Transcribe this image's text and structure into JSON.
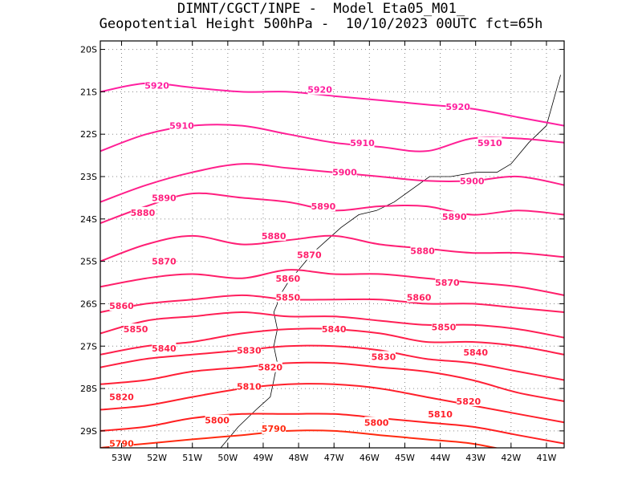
{
  "title": {
    "line1": "DIMNT/CGCT/INPE -  Model Eta05_M01_",
    "line2": "Geopotential Height 500hPa -  10/10/2023 00UTC fct=65h"
  },
  "chart_data": {
    "type": "contour",
    "variable": "Geopotential Height 500hPa",
    "units": "gpm",
    "xlim": [
      -53.6,
      -40.5
    ],
    "ylim": [
      -29.4,
      -19.8
    ],
    "x_ticks": [
      {
        "value": -53,
        "label": "53W"
      },
      {
        "value": -52,
        "label": "52W"
      },
      {
        "value": -51,
        "label": "51W"
      },
      {
        "value": -50,
        "label": "50W"
      },
      {
        "value": -49,
        "label": "49W"
      },
      {
        "value": -48,
        "label": "48W"
      },
      {
        "value": -47,
        "label": "47W"
      },
      {
        "value": -46,
        "label": "46W"
      },
      {
        "value": -45,
        "label": "45W"
      },
      {
        "value": -44,
        "label": "44W"
      },
      {
        "value": -43,
        "label": "43W"
      },
      {
        "value": -42,
        "label": "42W"
      },
      {
        "value": -41,
        "label": "41W"
      }
    ],
    "y_ticks": [
      {
        "value": -20,
        "label": "20S"
      },
      {
        "value": -21,
        "label": "21S"
      },
      {
        "value": -22,
        "label": "22S"
      },
      {
        "value": -23,
        "label": "23S"
      },
      {
        "value": -24,
        "label": "24S"
      },
      {
        "value": -25,
        "label": "25S"
      },
      {
        "value": -26,
        "label": "26S"
      },
      {
        "value": -27,
        "label": "27S"
      },
      {
        "value": -28,
        "label": "28S"
      },
      {
        "value": -29,
        "label": "29S"
      }
    ],
    "grid": "dotted",
    "contours": [
      {
        "level": 5920,
        "color": "#ff1fa0",
        "lats": [
          -21.0,
          -20.8,
          -20.9,
          -21.0,
          -21.0,
          -21.1,
          -21.2,
          -21.3,
          -21.4,
          -21.6,
          -21.8
        ]
      },
      {
        "level": 5910,
        "color": "#ff1f95",
        "lats": [
          -22.4,
          -22.0,
          -21.8,
          -21.8,
          -22.0,
          -22.2,
          -22.3,
          -22.4,
          -22.1,
          -22.1,
          -22.2
        ]
      },
      {
        "level": 5900,
        "color": "#ff1f8a",
        "lats": [
          -23.6,
          -23.2,
          -22.9,
          -22.7,
          -22.8,
          -22.9,
          -23.0,
          -23.1,
          -23.1,
          -23.0,
          -23.2
        ]
      },
      {
        "level": 5890,
        "color": "#ff1f7f",
        "lats": [
          -24.1,
          -23.7,
          -23.4,
          -23.5,
          -23.6,
          -23.8,
          -23.7,
          -23.7,
          -23.9,
          -23.8,
          -23.9
        ]
      },
      {
        "level": 5880,
        "color": "#ff1f75",
        "lats": [
          -25.0,
          -24.6,
          -24.4,
          -24.6,
          -24.5,
          -24.4,
          -24.6,
          -24.7,
          -24.8,
          -24.8,
          -24.9
        ]
      },
      {
        "level": 5870,
        "color": "#ff1f6a",
        "lats": [
          -25.6,
          -25.4,
          -25.3,
          -25.4,
          -25.2,
          -25.3,
          -25.3,
          -25.4,
          -25.5,
          -25.6,
          -25.8
        ]
      },
      {
        "level": 5860,
        "color": "#ff1f5f",
        "lats": [
          -26.2,
          -26.0,
          -25.9,
          -25.8,
          -25.9,
          -25.9,
          -25.9,
          -26.0,
          -26.0,
          -26.1,
          -26.2
        ]
      },
      {
        "level": 5850,
        "color": "#ff1f55",
        "lats": [
          -26.7,
          -26.4,
          -26.3,
          -26.2,
          -26.3,
          -26.3,
          -26.4,
          -26.5,
          -26.5,
          -26.6,
          -26.8
        ]
      },
      {
        "level": 5840,
        "color": "#ff1f4a",
        "lats": [
          -27.2,
          -27.0,
          -26.9,
          -26.7,
          -26.6,
          -26.6,
          -26.7,
          -26.9,
          -26.9,
          -27.0,
          -27.2
        ]
      },
      {
        "level": 5830,
        "color": "#ff1f40",
        "lats": [
          -27.5,
          -27.3,
          -27.2,
          -27.1,
          -27.0,
          -27.0,
          -27.1,
          -27.3,
          -27.4,
          -27.6,
          -27.8
        ]
      },
      {
        "level": 5820,
        "color": "#ff1f35",
        "lats": [
          -27.9,
          -27.8,
          -27.6,
          -27.5,
          -27.4,
          -27.4,
          -27.5,
          -27.6,
          -27.8,
          -28.1,
          -28.3
        ]
      },
      {
        "level": 5810,
        "color": "#ff1f2a",
        "lats": [
          -28.5,
          -28.4,
          -28.2,
          -28.0,
          -27.9,
          -27.9,
          -28.0,
          -28.2,
          -28.4,
          -28.6,
          -28.8
        ]
      },
      {
        "level": 5800,
        "color": "#ff1f20",
        "lats": [
          -29.0,
          -28.9,
          -28.7,
          -28.6,
          -28.6,
          -28.6,
          -28.7,
          -28.8,
          -28.9,
          -29.1,
          -29.3
        ]
      },
      {
        "level": 5790,
        "color": "#ff2a10",
        "lats": [
          -29.4,
          -29.3,
          -29.2,
          -29.1,
          -29.0,
          -29.0,
          -29.1,
          -29.2,
          -29.3,
          -29.5,
          -29.6
        ]
      }
    ],
    "contour_lons": [
      -53.6,
      -52.3,
      -51.0,
      -49.6,
      -48.3,
      -47.0,
      -45.7,
      -44.4,
      -43.1,
      -41.8,
      -40.5
    ],
    "contour_labels": [
      {
        "text": "5920",
        "lon": -52.0,
        "lat": -20.85,
        "level": 5920
      },
      {
        "text": "5920",
        "lon": -47.4,
        "lat": -20.95,
        "level": 5920
      },
      {
        "text": "5920",
        "lon": -43.5,
        "lat": -21.35,
        "level": 5920
      },
      {
        "text": "5910",
        "lon": -51.3,
        "lat": -21.8,
        "level": 5910
      },
      {
        "text": "5910",
        "lon": -46.2,
        "lat": -22.2,
        "level": 5910
      },
      {
        "text": "5910",
        "lon": -42.6,
        "lat": -22.2,
        "level": 5910
      },
      {
        "text": "5900",
        "lon": -46.7,
        "lat": -22.9,
        "level": 5900
      },
      {
        "text": "5900",
        "lon": -43.1,
        "lat": -23.1,
        "level": 5900
      },
      {
        "text": "5890",
        "lon": -51.8,
        "lat": -23.5,
        "level": 5890
      },
      {
        "text": "5890",
        "lon": -47.3,
        "lat": -23.7,
        "level": 5890
      },
      {
        "text": "5890",
        "lon": -43.6,
        "lat": -23.95,
        "level": 5890
      },
      {
        "text": "5880",
        "lon": -52.4,
        "lat": -23.85,
        "level": 5880
      },
      {
        "text": "5880",
        "lon": -48.7,
        "lat": -24.4,
        "level": 5880
      },
      {
        "text": "5880",
        "lon": -44.5,
        "lat": -24.75,
        "level": 5880
      },
      {
        "text": "5870",
        "lon": -51.8,
        "lat": -25.0,
        "level": 5870
      },
      {
        "text": "5870",
        "lon": -47.7,
        "lat": -24.85,
        "level": 5870
      },
      {
        "text": "5870",
        "lon": -43.8,
        "lat": -25.5,
        "level": 5870
      },
      {
        "text": "5860",
        "lon": -48.3,
        "lat": -25.4,
        "level": 5860
      },
      {
        "text": "5860",
        "lon": -53.0,
        "lat": -26.05,
        "level": 5860
      },
      {
        "text": "5860",
        "lon": -44.6,
        "lat": -25.85,
        "level": 5860
      },
      {
        "text": "5850",
        "lon": -48.3,
        "lat": -25.85,
        "level": 5850
      },
      {
        "text": "5850",
        "lon": -52.6,
        "lat": -26.6,
        "level": 5850
      },
      {
        "text": "5850",
        "lon": -43.9,
        "lat": -26.55,
        "level": 5850
      },
      {
        "text": "5840",
        "lon": -51.8,
        "lat": -27.05,
        "level": 5840
      },
      {
        "text": "5840",
        "lon": -47.0,
        "lat": -26.6,
        "level": 5840
      },
      {
        "text": "5840",
        "lon": -43.0,
        "lat": -27.15,
        "level": 5840
      },
      {
        "text": "5830",
        "lon": -49.4,
        "lat": -27.1,
        "level": 5830
      },
      {
        "text": "5830",
        "lon": -45.6,
        "lat": -27.25,
        "level": 5830
      },
      {
        "text": "5820",
        "lon": -48.8,
        "lat": -27.5,
        "level": 5820
      },
      {
        "text": "5820",
        "lon": -53.0,
        "lat": -28.2,
        "level": 5820
      },
      {
        "text": "5820",
        "lon": -43.2,
        "lat": -28.3,
        "level": 5820
      },
      {
        "text": "5810",
        "lon": -49.4,
        "lat": -27.95,
        "level": 5810
      },
      {
        "text": "5810",
        "lon": -44.0,
        "lat": -28.6,
        "level": 5810
      },
      {
        "text": "5800",
        "lon": -50.3,
        "lat": -28.75,
        "level": 5800
      },
      {
        "text": "5800",
        "lon": -45.8,
        "lat": -28.8,
        "level": 5800
      },
      {
        "text": "5790",
        "lon": -48.7,
        "lat": -28.95,
        "level": 5790
      },
      {
        "text": "5790",
        "lon": -53.0,
        "lat": -29.3,
        "level": 5790
      }
    ],
    "coastline": [
      [
        -48.6,
        -26.0
      ],
      [
        -48.7,
        -26.2
      ],
      [
        -48.6,
        -26.6
      ],
      [
        -48.7,
        -27.0
      ],
      [
        -48.6,
        -27.4
      ],
      [
        -48.7,
        -27.8
      ],
      [
        -48.8,
        -28.2
      ],
      [
        -49.2,
        -28.5
      ],
      [
        -49.7,
        -28.9
      ],
      [
        -50.1,
        -29.3
      ],
      [
        -50.3,
        -29.5
      ],
      [
        -48.6,
        -25.9
      ],
      [
        -48.3,
        -25.5
      ],
      [
        -48.0,
        -25.2
      ],
      [
        -47.6,
        -24.8
      ],
      [
        -47.2,
        -24.5
      ],
      [
        -46.8,
        -24.2
      ],
      [
        -46.3,
        -23.9
      ],
      [
        -45.8,
        -23.8
      ],
      [
        -45.3,
        -23.6
      ],
      [
        -44.8,
        -23.3
      ],
      [
        -44.3,
        -23.0
      ],
      [
        -43.7,
        -23.0
      ],
      [
        -43.0,
        -22.9
      ],
      [
        -42.4,
        -22.9
      ],
      [
        -42.0,
        -22.7
      ],
      [
        -41.5,
        -22.2
      ],
      [
        -41.0,
        -21.8
      ],
      [
        -40.8,
        -21.2
      ],
      [
        -40.6,
        -20.6
      ]
    ]
  }
}
